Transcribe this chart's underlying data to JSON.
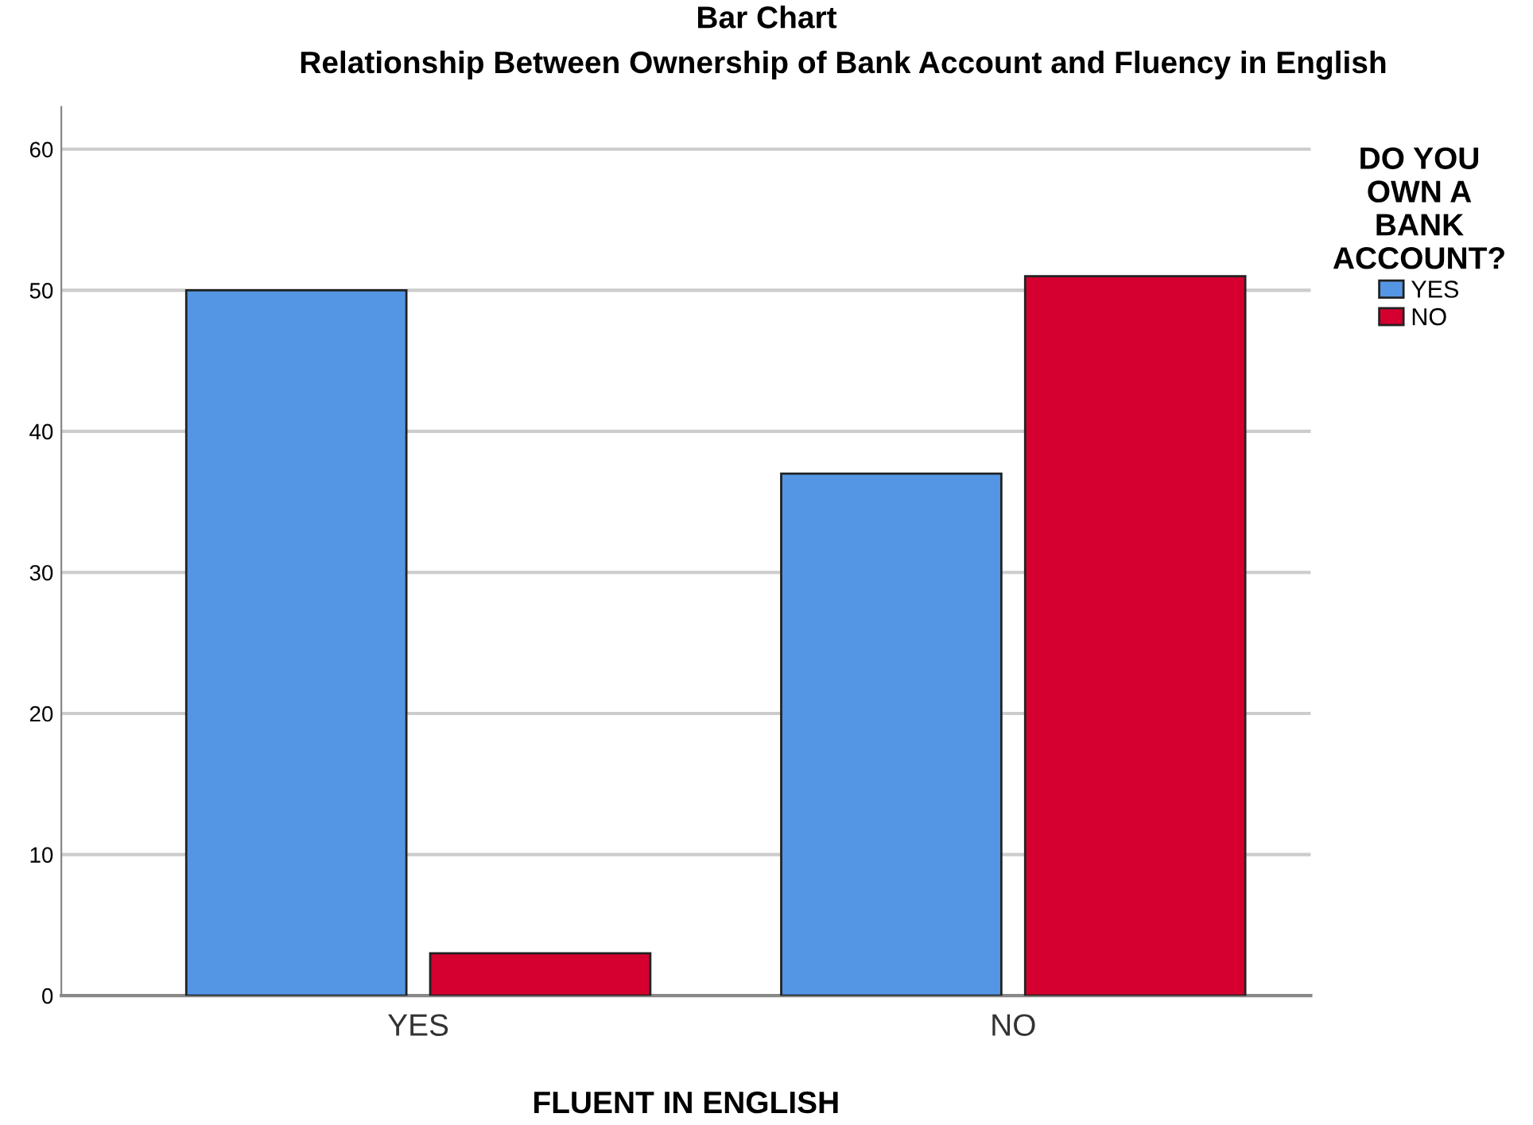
{
  "chart_data": {
    "type": "bar",
    "title": "Relationship Between Ownership of Bank Account and Fluency in English",
    "subtitle": "Bar Chart",
    "xlabel": "FLUENT IN ENGLISH",
    "legend_title": "DO YOU\nOWN A\nBANK\nACCOUNT?",
    "categories": [
      "YES",
      "NO"
    ],
    "series": [
      {
        "name": "YES",
        "color": "#5596e4",
        "values": [
          50,
          37
        ]
      },
      {
        "name": "NO",
        "color": "#d5002f",
        "values": [
          3,
          51
        ]
      }
    ],
    "ylim": [
      0,
      63
    ],
    "yticks": [
      0,
      10,
      20,
      30,
      40,
      50,
      60
    ],
    "grid": "y",
    "legend": "top right"
  }
}
